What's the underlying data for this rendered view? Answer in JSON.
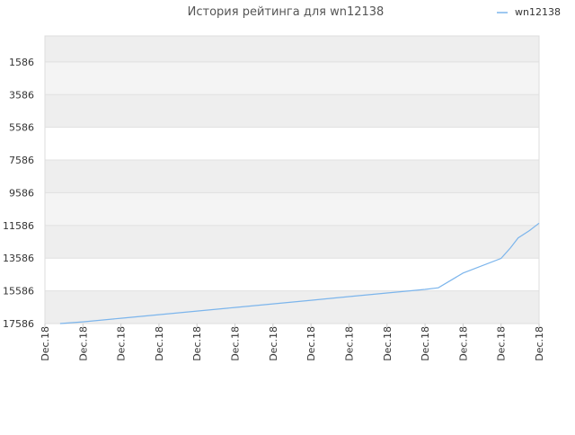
{
  "chart_data": {
    "type": "line",
    "title": "История рейтинга для wn12138",
    "xlabel": "",
    "ylabel": "",
    "y_inverted": true,
    "ylim": [
      17586,
      0
    ],
    "yticks": [
      1586,
      3586,
      5586,
      7586,
      9586,
      11586,
      13586,
      15586,
      17586
    ],
    "x_tick_labels": [
      "Dec.18",
      "Dec.18",
      "Dec.18",
      "Dec.18",
      "Dec.18",
      "Dec.18",
      "Dec.18",
      "Dec.18",
      "Dec.18",
      "Dec.18",
      "Dec.18",
      "Dec.18",
      "Dec.18",
      "Dec.18"
    ],
    "grid": true,
    "legend_position": "top-right",
    "colors": {
      "series": "#7cb5ec",
      "band": "#f3f3f3",
      "grid": "#e0e0e0",
      "axis_text": "#333333"
    },
    "series": [
      {
        "name": "wn12138",
        "x": [
          0.4,
          1,
          2,
          3,
          4,
          5,
          6,
          7,
          8,
          9,
          10,
          10.35,
          11,
          12,
          12.25,
          12.45,
          12.75,
          13
        ],
        "values": [
          17586,
          17480,
          17260,
          17040,
          16820,
          16600,
          16380,
          16160,
          15940,
          15720,
          15500,
          15400,
          14500,
          13600,
          12950,
          12350,
          11900,
          11450
        ]
      }
    ]
  }
}
